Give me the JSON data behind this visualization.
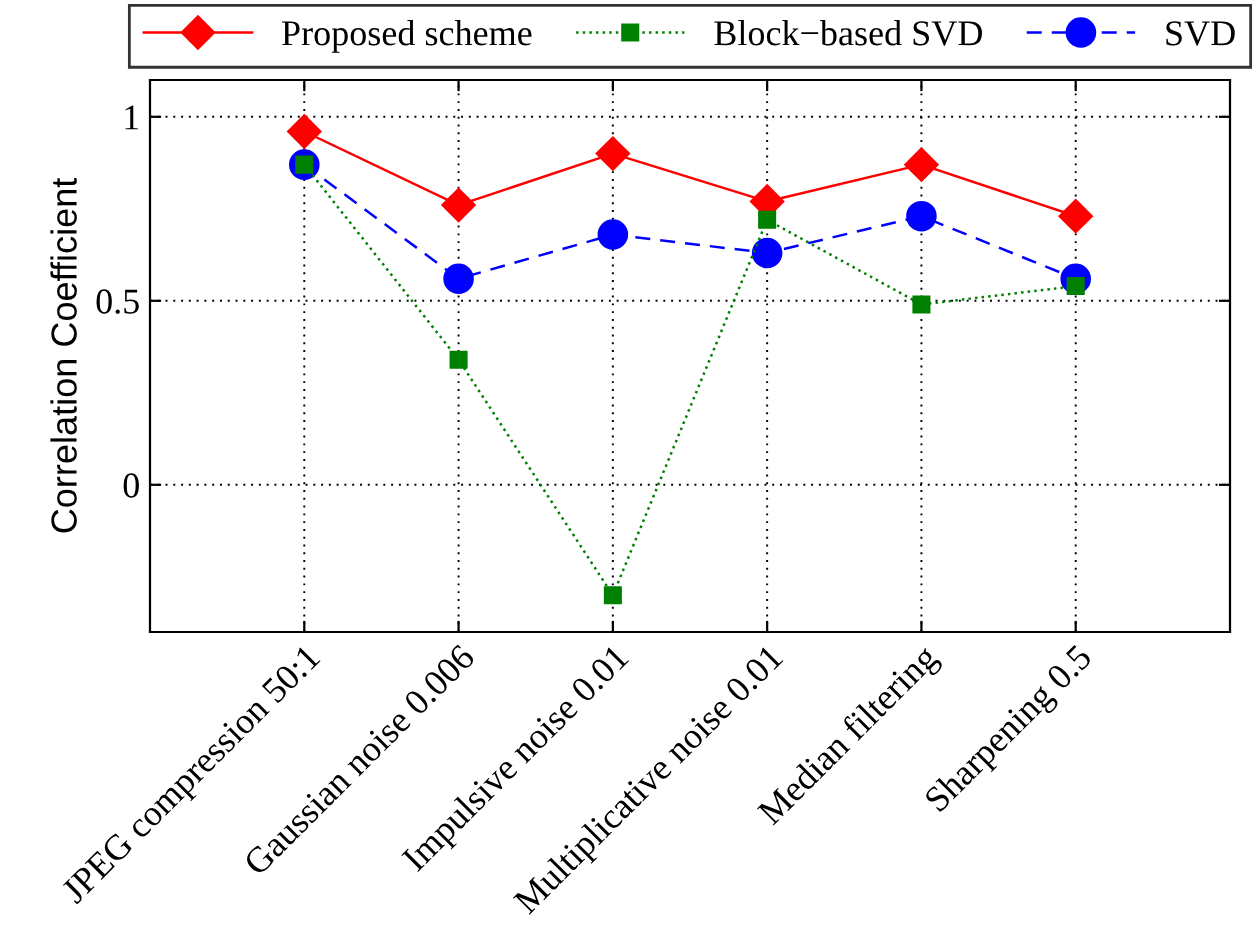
{
  "chart_data": {
    "type": "line",
    "ylabel": "Correlation Coefficient",
    "categories": [
      "JPEG compression 50:1",
      "Gaussian noise 0.006",
      "Impulsive noise 0.01",
      "Multiplicative noise 0.01",
      "Median filtering",
      "Sharpening 0.5"
    ],
    "series": [
      {
        "name": "Proposed scheme",
        "color": "#ff0000",
        "marker": "diamond",
        "line_style": "solid",
        "values": [
          0.96,
          0.76,
          0.9,
          0.77,
          0.87,
          0.73
        ]
      },
      {
        "name": "Block−based SVD",
        "color": "#008000",
        "marker": "square",
        "line_style": "dotted",
        "values": [
          0.87,
          0.34,
          -0.3,
          0.72,
          0.49,
          0.54
        ]
      },
      {
        "name": "SVD",
        "color": "#0000ff",
        "marker": "circle",
        "line_style": "dashed",
        "values": [
          0.87,
          0.56,
          0.68,
          0.63,
          0.73,
          0.56
        ]
      }
    ],
    "ylim": [
      -0.4,
      1.1
    ],
    "yticks": [
      0,
      0.5,
      1
    ],
    "grid": true,
    "legend": "top"
  }
}
